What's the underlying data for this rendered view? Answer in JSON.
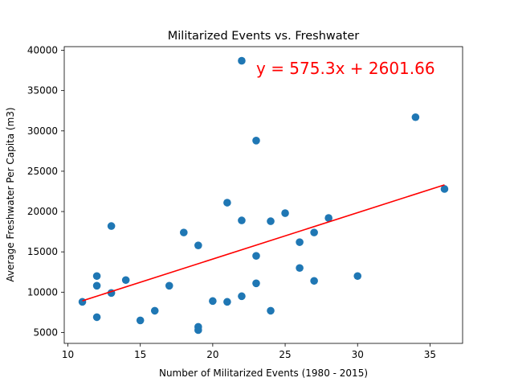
{
  "chart_data": {
    "type": "scatter",
    "title": "Militarized Events vs. Freshwater",
    "xlabel": "Number of Militarized Events (1980 - 2015)",
    "ylabel": "Average Freshwater Per Capita (m3)",
    "xlim": [
      9.75,
      37.25
    ],
    "ylim": [
      3650,
      40450
    ],
    "xticks": [
      10,
      15,
      20,
      25,
      30,
      35
    ],
    "yticks": [
      5000,
      10000,
      15000,
      20000,
      25000,
      30000,
      35000,
      40000
    ],
    "grid": false,
    "point_color": "#1f77b4",
    "points": [
      {
        "x": 11,
        "y": 8800
      },
      {
        "x": 12,
        "y": 12000
      },
      {
        "x": 12,
        "y": 10800
      },
      {
        "x": 12,
        "y": 6900
      },
      {
        "x": 13,
        "y": 18200
      },
      {
        "x": 13,
        "y": 9900
      },
      {
        "x": 14,
        "y": 11500
      },
      {
        "x": 15,
        "y": 6500
      },
      {
        "x": 16,
        "y": 7700
      },
      {
        "x": 17,
        "y": 10800
      },
      {
        "x": 18,
        "y": 17400
      },
      {
        "x": 19,
        "y": 15800
      },
      {
        "x": 19,
        "y": 5700
      },
      {
        "x": 19,
        "y": 5300
      },
      {
        "x": 20,
        "y": 8900
      },
      {
        "x": 21,
        "y": 21100
      },
      {
        "x": 21,
        "y": 8800
      },
      {
        "x": 22,
        "y": 38700
      },
      {
        "x": 22,
        "y": 18900
      },
      {
        "x": 22,
        "y": 9500
      },
      {
        "x": 23,
        "y": 28800
      },
      {
        "x": 23,
        "y": 14500
      },
      {
        "x": 23,
        "y": 11100
      },
      {
        "x": 24,
        "y": 18800
      },
      {
        "x": 24,
        "y": 7700
      },
      {
        "x": 25,
        "y": 19800
      },
      {
        "x": 26,
        "y": 16200
      },
      {
        "x": 26,
        "y": 13000
      },
      {
        "x": 27,
        "y": 17400
      },
      {
        "x": 27,
        "y": 11400
      },
      {
        "x": 28,
        "y": 19200
      },
      {
        "x": 30,
        "y": 12000
      },
      {
        "x": 34,
        "y": 31700
      },
      {
        "x": 36,
        "y": 22800
      }
    ],
    "regression": {
      "slope": 575.3,
      "intercept": 2601.66,
      "x_range": [
        11,
        36
      ],
      "color": "#ff0000",
      "equation": "y = 575.3x + 2601.66"
    }
  }
}
